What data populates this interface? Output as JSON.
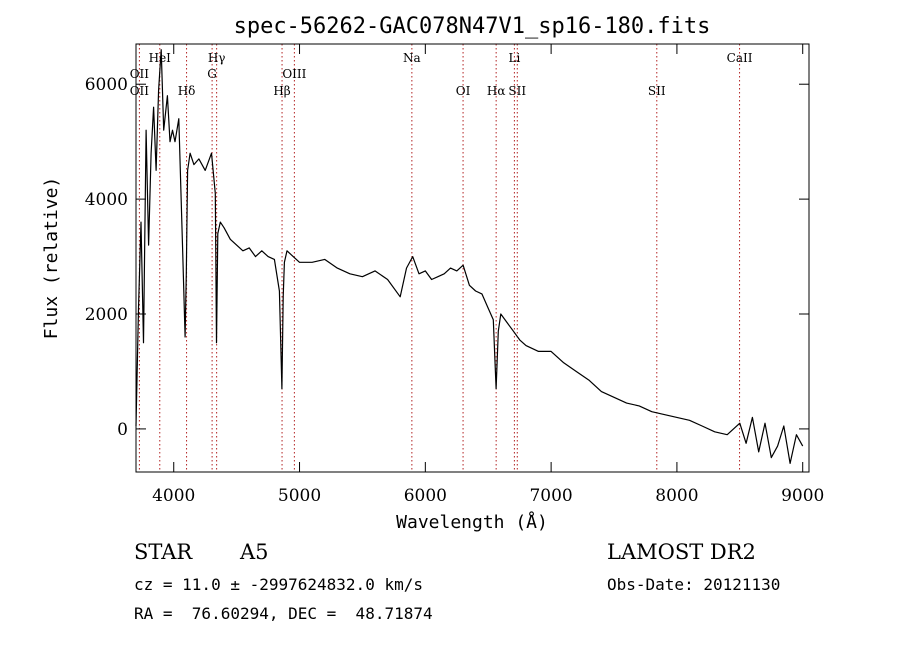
{
  "chart_data": {
    "type": "line",
    "title": "spec-56262-GAC078N47V1_sp16-180.fits",
    "xlabel": "Wavelength (Å)",
    "ylabel": "Flux (relative)",
    "xlim": [
      3700,
      9050
    ],
    "ylim": [
      -750,
      6700
    ],
    "xticks": [
      4000,
      5000,
      6000,
      7000,
      8000,
      9000
    ],
    "yticks": [
      0,
      2000,
      4000,
      6000
    ],
    "series": [
      {
        "color": "#000000",
        "x": [
          3700,
          3720,
          3740,
          3760,
          3780,
          3800,
          3820,
          3840,
          3860,
          3880,
          3900,
          3920,
          3950,
          3970,
          3990,
          4010,
          4040,
          4070,
          4090,
          4100,
          4110,
          4130,
          4160,
          4200,
          4250,
          4300,
          4330,
          4340,
          4350,
          4370,
          4400,
          4450,
          4500,
          4550,
          4600,
          4650,
          4700,
          4750,
          4800,
          4840,
          4860,
          4870,
          4880,
          4900,
          4950,
          5000,
          5100,
          5200,
          5300,
          5400,
          5500,
          5600,
          5700,
          5800,
          5850,
          5900,
          5950,
          6000,
          6050,
          6100,
          6150,
          6200,
          6250,
          6300,
          6350,
          6400,
          6450,
          6500,
          6540,
          6563,
          6580,
          6600,
          6650,
          6700,
          6750,
          6800,
          6900,
          7000,
          7100,
          7200,
          7300,
          7400,
          7500,
          7600,
          7700,
          7800,
          7900,
          8000,
          8100,
          8200,
          8300,
          8400,
          8500,
          8550,
          8600,
          8650,
          8700,
          8750,
          8800,
          8850,
          8900,
          8950,
          9000
        ],
        "values": [
          50,
          2100,
          3600,
          1500,
          5200,
          3200,
          4800,
          5600,
          4500,
          5900,
          6600,
          5200,
          5800,
          5000,
          5200,
          5000,
          5400,
          3200,
          1600,
          2700,
          4500,
          4800,
          4600,
          4700,
          4500,
          4800,
          4100,
          1500,
          3400,
          3600,
          3500,
          3300,
          3200,
          3100,
          3150,
          3000,
          3100,
          3000,
          2950,
          2400,
          700,
          2300,
          2900,
          3100,
          3000,
          2900,
          2900,
          2950,
          2800,
          2700,
          2650,
          2750,
          2600,
          2300,
          2800,
          3000,
          2700,
          2750,
          2600,
          2650,
          2700,
          2800,
          2750,
          2850,
          2500,
          2400,
          2350,
          2100,
          1900,
          700,
          1700,
          2000,
          1850,
          1700,
          1550,
          1450,
          1350,
          1350,
          1150,
          1000,
          850,
          650,
          550,
          450,
          400,
          300,
          250,
          200,
          150,
          50,
          -50,
          -100,
          100,
          -250,
          200,
          -400,
          100,
          -500,
          -300,
          50,
          -600,
          -100,
          -300
        ]
      }
    ],
    "spectral_lines": [
      {
        "label": "OII",
        "x": 3727,
        "row": 2
      },
      {
        "label": "OII",
        "x": 3727,
        "row": 4
      },
      {
        "label": "HeI",
        "x": 3889,
        "row": 1
      },
      {
        "label": "Hδ",
        "x": 4102,
        "row": 3
      },
      {
        "label": "Hγ",
        "x": 4341,
        "row": 1
      },
      {
        "label": "G",
        "x": 4305,
        "row": 2
      },
      {
        "label": "Hβ",
        "x": 4861,
        "row": 4
      },
      {
        "label": "OIII",
        "x": 4959,
        "row": 2
      },
      {
        "label": "Na",
        "x": 5893,
        "row": 1
      },
      {
        "label": "OI",
        "x": 6300,
        "row": 4
      },
      {
        "label": "Hα",
        "x": 6563,
        "row": 3
      },
      {
        "label": "Li",
        "x": 6708,
        "row": 1
      },
      {
        "label": "SII",
        "x": 6731,
        "row": 3
      },
      {
        "label": "SII",
        "x": 7840,
        "row": 4
      },
      {
        "label": "CaII",
        "x": 8498,
        "row": 1
      }
    ],
    "grid": false
  },
  "info": {
    "class_label": "STAR",
    "subclass_label": "A5",
    "survey_label": "LAMOST DR2",
    "cz_line": "cz = 11.0 ± -2997624832.0 km/s",
    "obs_date_line": "Obs-Date: 20121130",
    "radec_line": "RA =  76.60294, DEC =  48.71874"
  }
}
